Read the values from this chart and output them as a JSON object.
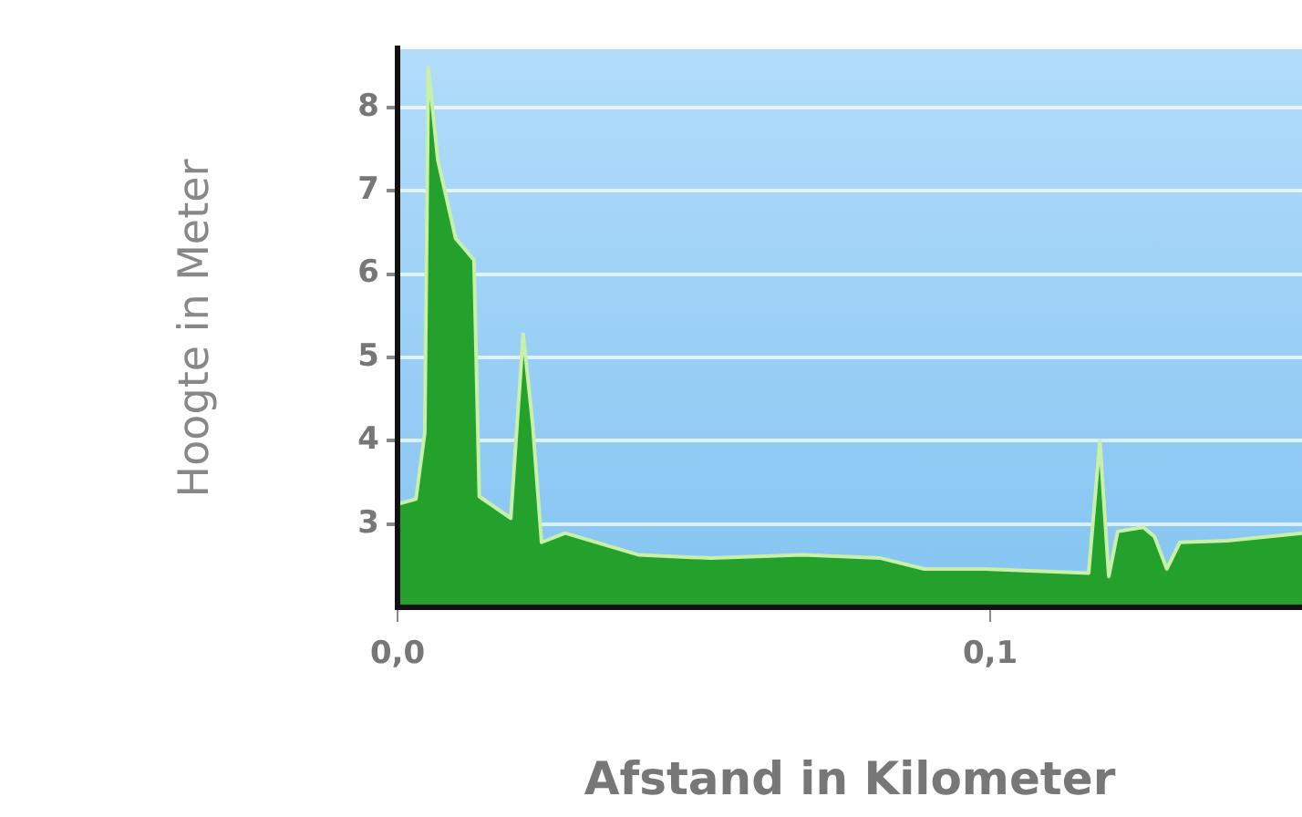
{
  "chart_data": {
    "type": "area",
    "xlabel": "Afstand in Kilometer",
    "ylabel": "Hoogte in Meter",
    "x": [
      0,
      0.0031,
      0.0046,
      0.0052,
      0.0068,
      0.0098,
      0.0129,
      0.0138,
      0.0191,
      0.0212,
      0.0228,
      0.0243,
      0.0283,
      0.0406,
      0.0529,
      0.0683,
      0.0815,
      0.0889,
      0.0991,
      0.1166,
      0.1185,
      0.12,
      0.1215,
      0.1258,
      0.1277,
      0.1298,
      0.132,
      0.14,
      0.1526
    ],
    "series": [
      {
        "color": "#24a02c",
        "values": [
          3.24,
          3.3,
          4.1,
          8.48,
          7.37,
          6.43,
          6.17,
          3.33,
          3.07,
          5.28,
          4.2,
          2.78,
          2.89,
          2.63,
          2.59,
          2.63,
          2.59,
          2.46,
          2.46,
          2.41,
          4.0,
          2.37,
          2.91,
          2.96,
          2.85,
          2.46,
          2.78,
          2.8,
          2.89
        ]
      }
    ],
    "xlim": [
      0,
      0.1526
    ],
    "xticks": [
      {
        "value": 0,
        "label": "0,0"
      },
      {
        "value": 0.1,
        "label": "0,1"
      }
    ],
    "ylim": [
      2,
      8.7
    ],
    "yticks": [
      3,
      4,
      5,
      6,
      7,
      8
    ],
    "grid": "y",
    "legend": false
  }
}
